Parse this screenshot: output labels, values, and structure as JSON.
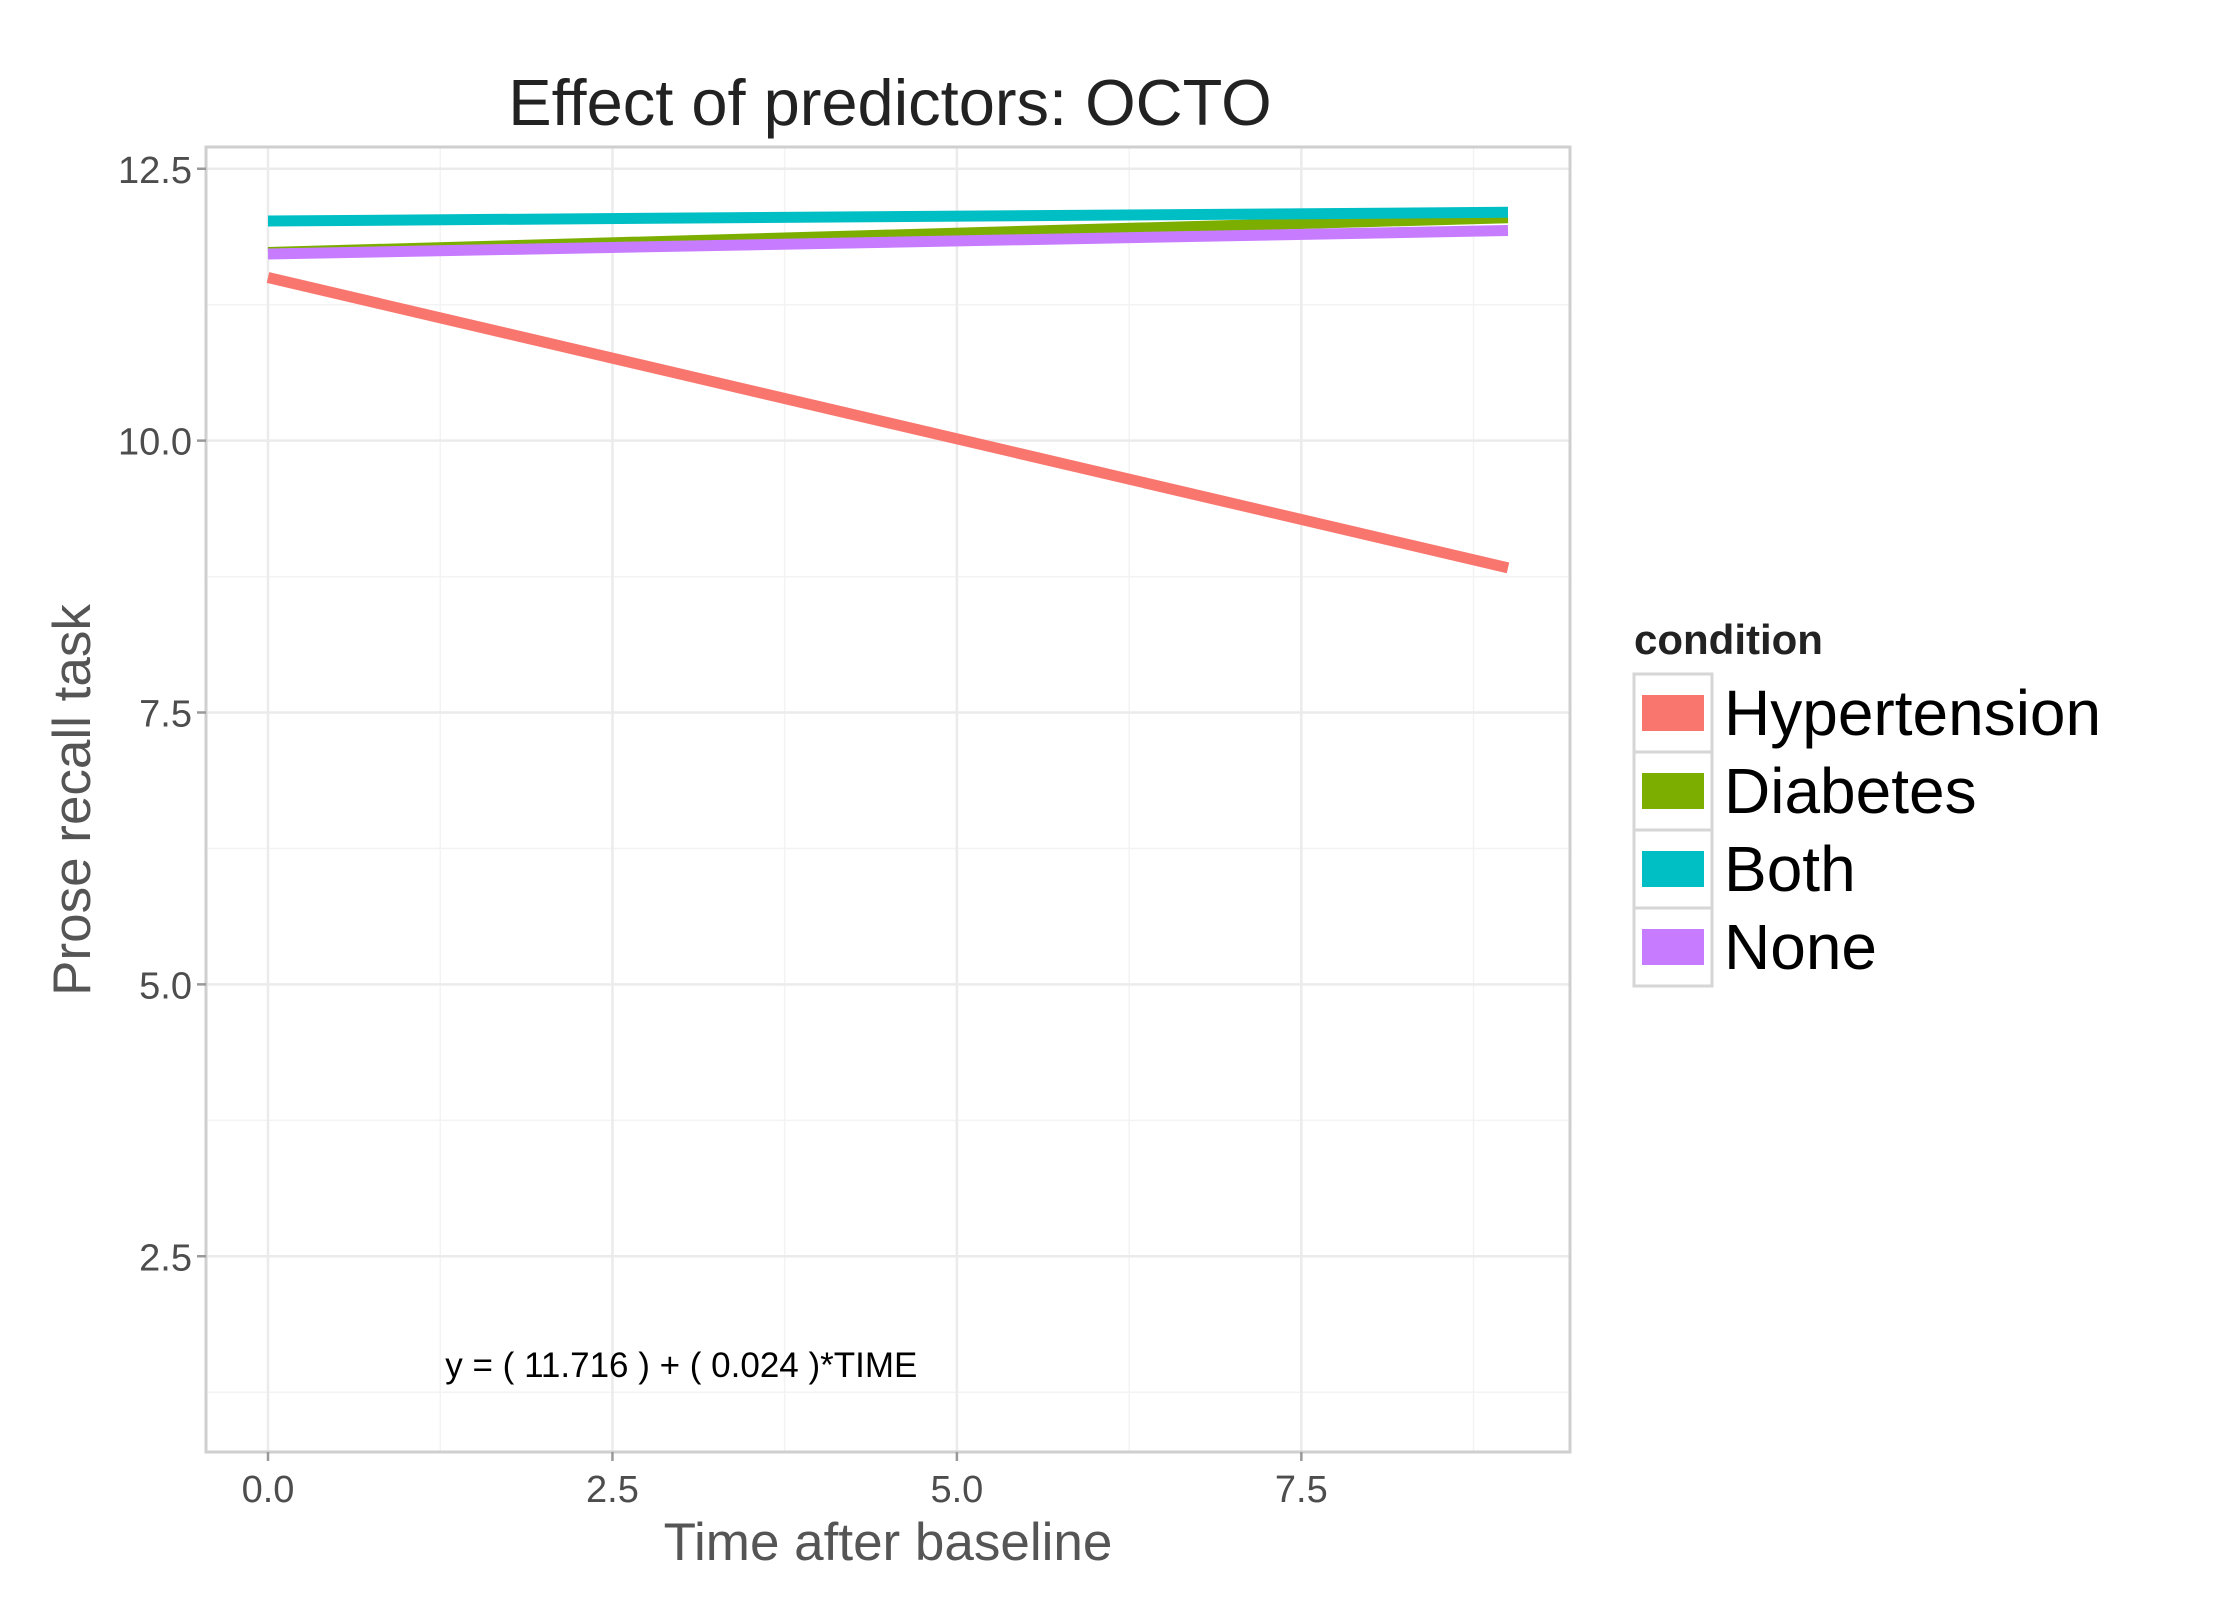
{
  "chart_data": {
    "type": "line",
    "title": "Effect of predictors: OCTO",
    "xlabel": "Time after baseline",
    "ylabel": "Prose recall task",
    "xlim": [
      -0.45,
      9.45
    ],
    "ylim": [
      0.7,
      12.7
    ],
    "x_ticks": [
      0.0,
      2.5,
      5.0,
      7.5
    ],
    "x_tick_labels": [
      "0.0",
      "2.5",
      "5.0",
      "7.5"
    ],
    "y_ticks": [
      2.5,
      5.0,
      7.5,
      10.0,
      12.5
    ],
    "y_tick_labels": [
      "2.5",
      "5.0",
      "7.5",
      "10.0",
      "12.5"
    ],
    "grid": true,
    "legend": {
      "title": "condition",
      "position": "right"
    },
    "series": [
      {
        "name": "Hypertension",
        "color": "#F8766D",
        "x": [
          0,
          9
        ],
        "y": [
          11.5,
          8.83
        ]
      },
      {
        "name": "Diabetes",
        "color": "#7CAE00",
        "x": [
          0,
          9
        ],
        "y": [
          11.73,
          12.05
        ]
      },
      {
        "name": "Both",
        "color": "#00BFC4",
        "x": [
          0,
          9
        ],
        "y": [
          12.02,
          12.1
        ]
      },
      {
        "name": "None",
        "color": "#C77CFF",
        "x": [
          0,
          9
        ],
        "y": [
          11.716,
          11.932
        ]
      }
    ],
    "annotations": [
      {
        "text": "y = ( 11.716 ) + ( 0.024 )*TIME",
        "x": 3.0,
        "y": 1.5
      }
    ]
  }
}
